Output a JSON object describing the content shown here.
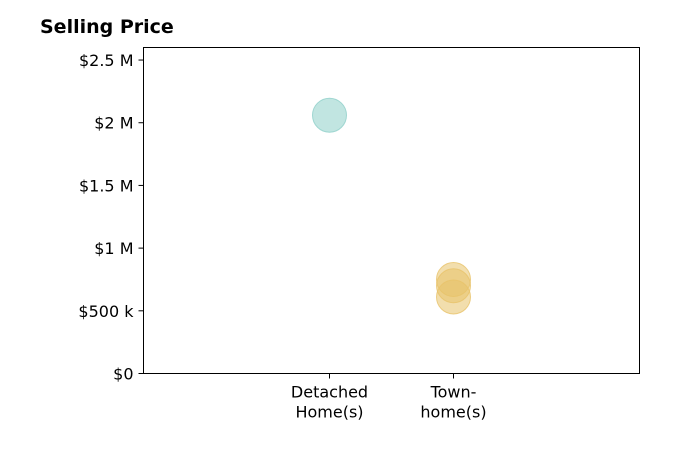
{
  "chart_data": {
    "type": "scatter",
    "title": "Selling Price",
    "xlabel": "",
    "ylabel": "",
    "categories": [
      [
        "Detached",
        "Home(s)"
      ],
      [
        "Town-",
        "home(s)"
      ]
    ],
    "ylim": [
      0,
      2600000
    ],
    "yticks": [
      {
        "value": 0,
        "label": "$0"
      },
      {
        "value": 500000,
        "label": "$500 k"
      },
      {
        "value": 1000000,
        "label": "$1 M"
      },
      {
        "value": 1500000,
        "label": "$1.5 M"
      },
      {
        "value": 2000000,
        "label": "$2 M"
      },
      {
        "value": 2500000,
        "label": "$2.5 M"
      }
    ],
    "grid": false,
    "series": [
      {
        "color": "#8ecfc9",
        "points": [
          {
            "x": "Detached Home(s)",
            "y": 2060000
          }
        ]
      },
      {
        "color": "#e8c36a",
        "points": [
          {
            "x": "Town-home(s)",
            "y": 750000
          },
          {
            "x": "Town-home(s)",
            "y": 700000
          },
          {
            "x": "Town-home(s)",
            "y": 610000
          }
        ]
      }
    ]
  }
}
